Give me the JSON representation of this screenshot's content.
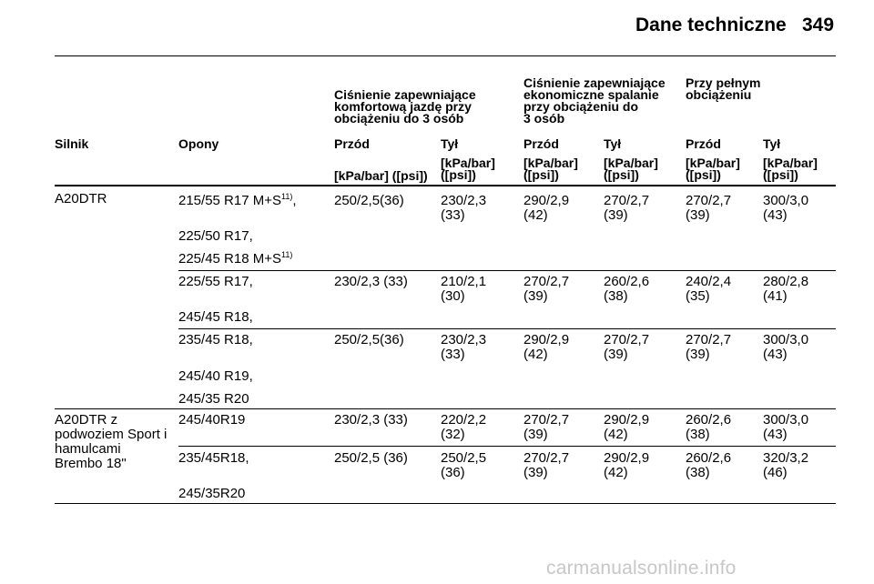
{
  "header": {
    "title": "Dane techniczne",
    "page_number": "349"
  },
  "table": {
    "group_headers": [
      [
        "Ciśnienie zapewniające",
        "komfortową jazdę przy",
        "obciążeniu do 3 osób"
      ],
      [
        "Ciśnienie zapewniające",
        "ekonomiczne spalanie",
        "przy obciążeniu do",
        "3 osób"
      ],
      [
        "Przy pełnym",
        "obciążeniu"
      ]
    ],
    "columns": [
      "Silnik",
      "Opony",
      "Przód",
      "Tył",
      "Przód",
      "Tył",
      "Przód",
      "Tył"
    ],
    "units": [
      "[kPa/bar] ([psi])",
      "[kPa/bar]",
      "([psi])",
      "[kPa/bar]",
      "([psi])",
      "[kPa/bar]",
      "([psi])",
      "[kPa/bar]",
      "([psi])",
      "[kPa/bar]",
      "([psi])"
    ],
    "rows": [
      {
        "engine": "A20DTR",
        "tyres": [
          "215/55 R17 M+S",
          "11)",
          ",",
          "225/50 R17,",
          "225/45 R18 M+S",
          "11)"
        ],
        "c1": "250/2,5(36)",
        "c2": [
          "230/2,3",
          "(33)"
        ],
        "c3": [
          "290/2,9",
          "(42)"
        ],
        "c4": [
          "270/2,7",
          "(39)"
        ],
        "c5": [
          "270/2,7",
          "(39)"
        ],
        "c6": [
          "300/3,0",
          "(43)"
        ]
      },
      {
        "tyres": [
          "225/55 R17,",
          "245/45 R18,"
        ],
        "c1": "230/2,3 (33)",
        "c2": [
          "210/2,1",
          "(30)"
        ],
        "c3": [
          "270/2,7",
          "(39)"
        ],
        "c4": [
          "260/2,6",
          "(38)"
        ],
        "c5": [
          "240/2,4",
          "(35)"
        ],
        "c6": [
          "280/2,8",
          "(41)"
        ]
      },
      {
        "tyres": [
          "235/45 R18,",
          "245/40 R19,",
          "245/35 R20"
        ],
        "c1": "250/2,5(36)",
        "c2": [
          "230/2,3",
          "(33)"
        ],
        "c3": [
          "290/2,9",
          "(42)"
        ],
        "c4": [
          "270/2,7",
          "(39)"
        ],
        "c5": [
          "270/2,7",
          "(39)"
        ],
        "c6": [
          "300/3,0",
          "(43)"
        ]
      },
      {
        "engine": [
          "A20DTR z",
          "podwoziem Sport i",
          "hamulcami",
          "Brembo 18\""
        ],
        "tyres": [
          "245/40R19"
        ],
        "c1": "230/2,3 (33)",
        "c2": [
          "220/2,2",
          "(32)"
        ],
        "c3": [
          "270/2,7",
          "(39)"
        ],
        "c4": [
          "290/2,9",
          "(42)"
        ],
        "c5": [
          "260/2,6",
          "(38)"
        ],
        "c6": [
          "300/3,0",
          "(43)"
        ]
      },
      {
        "tyres": [
          "235/45R18,",
          "245/35R20"
        ],
        "c1": "250/2,5 (36)",
        "c2": [
          "250/2,5",
          "(36)"
        ],
        "c3": [
          "270/2,7",
          "(39)"
        ],
        "c4": [
          "290/2,9",
          "(42)"
        ],
        "c5": [
          "260/2,6",
          "(38)"
        ],
        "c6": [
          "320/3,2",
          "(46)"
        ]
      }
    ]
  },
  "watermark": "carmanualsonline.info"
}
